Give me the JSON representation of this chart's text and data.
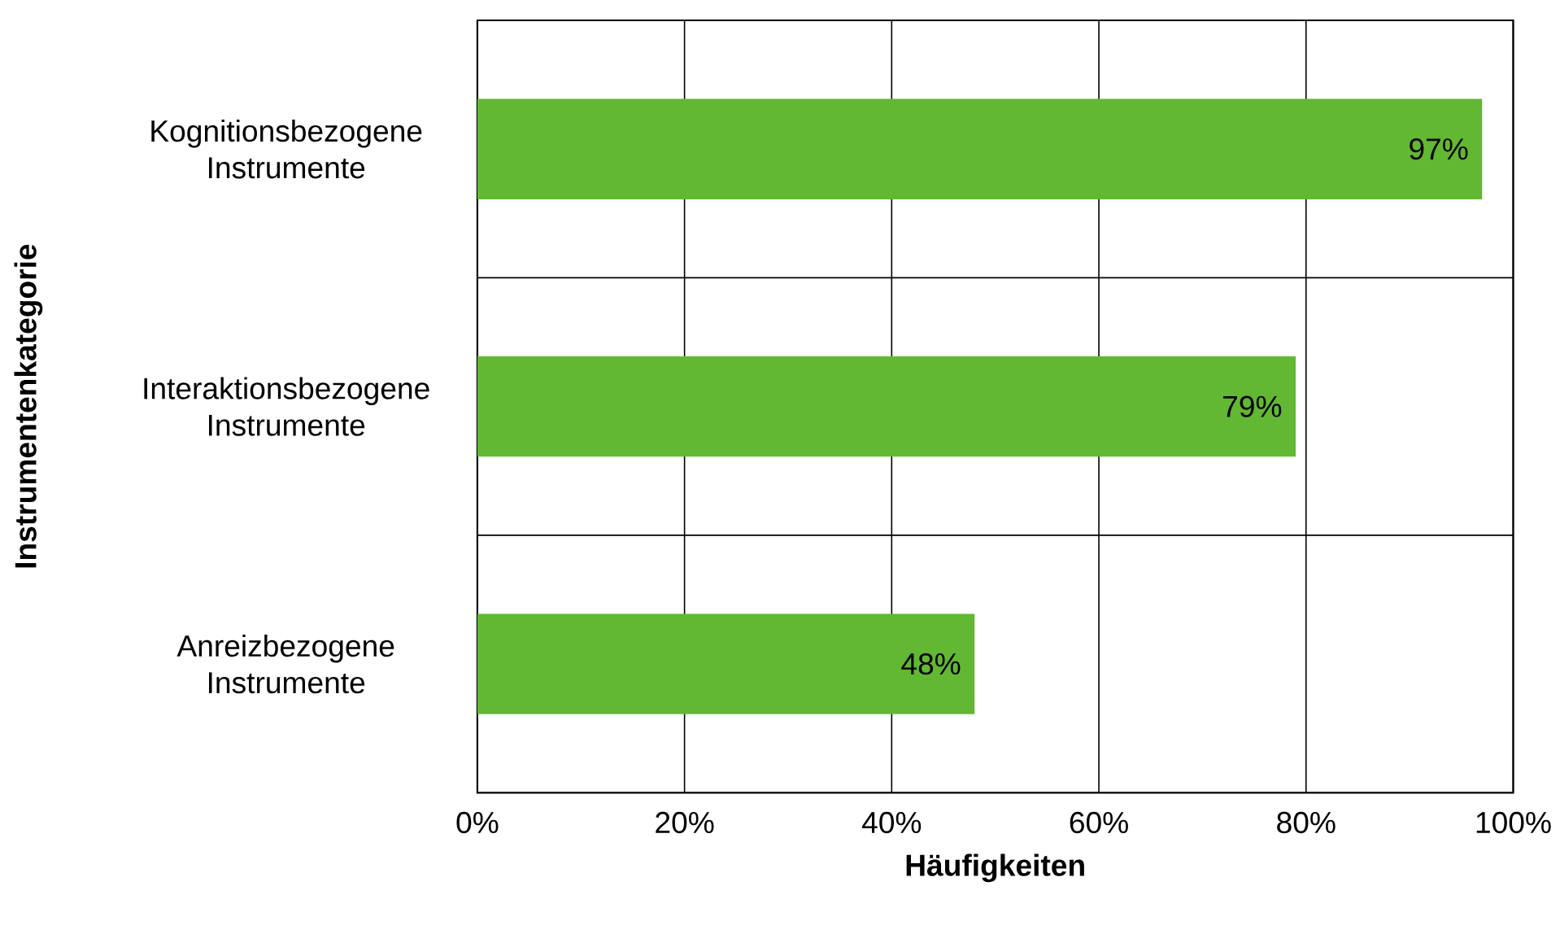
{
  "chart_data": {
    "type": "bar",
    "orientation": "horizontal",
    "xlabel": "Häufigkeiten",
    "ylabel": "Instrumentenkategorie",
    "categories": [
      "Kognitionsbezogene Instrumente",
      "Interaktionsbezogene Instrumente",
      "Anreizbezogene Instrumente"
    ],
    "values": [
      97,
      79,
      48
    ],
    "value_labels": [
      "97%",
      "79%",
      "48%"
    ],
    "color": "#62b832",
    "xlim": [
      0,
      100
    ],
    "xticks": [
      {
        "value": 0,
        "label": "0%"
      },
      {
        "value": 20,
        "label": "20%"
      },
      {
        "value": 40,
        "label": "40%"
      },
      {
        "value": 60,
        "label": "60%"
      },
      {
        "value": 80,
        "label": "80%"
      },
      {
        "value": 100,
        "label": "100%"
      }
    ],
    "grid": "x"
  }
}
